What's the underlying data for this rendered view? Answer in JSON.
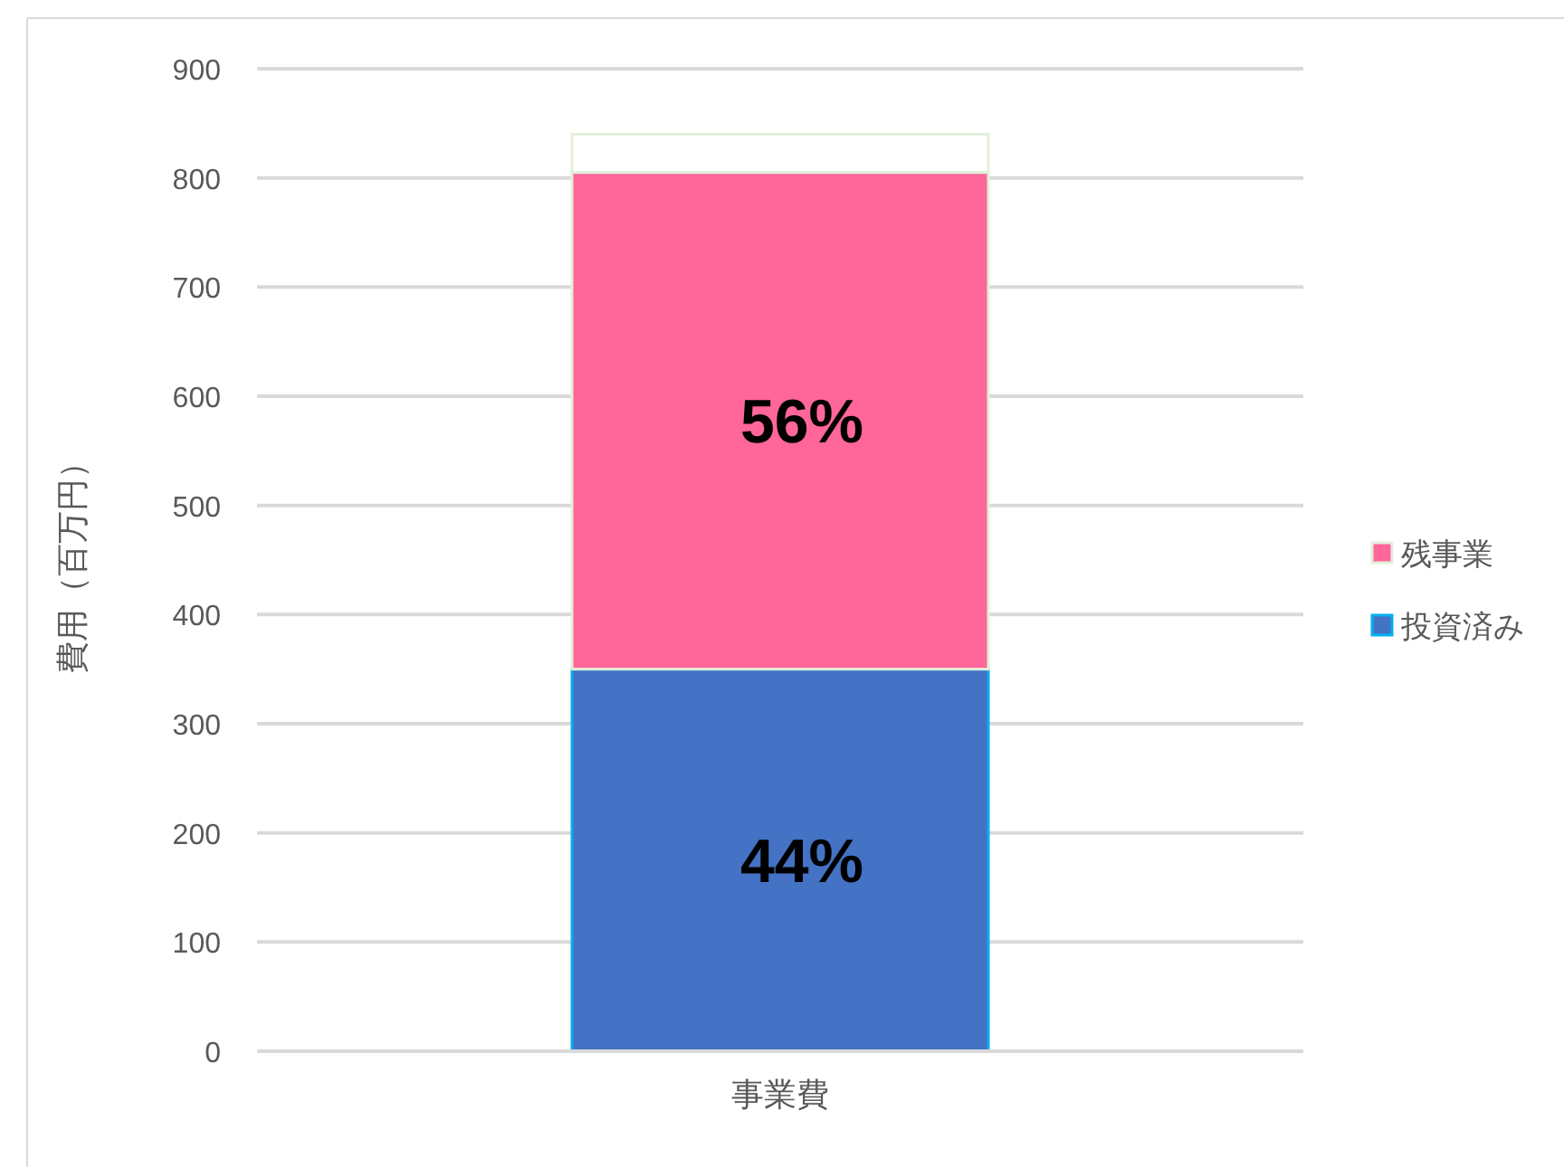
{
  "chart_data": {
    "type": "bar",
    "stacked": true,
    "categories": [
      "事業費"
    ],
    "ylabel": "費用（百万円）",
    "ylim": [
      0,
      900
    ],
    "yticks": [
      0,
      100,
      200,
      300,
      400,
      500,
      600,
      700,
      800,
      900
    ],
    "grid": "y",
    "legend": "right",
    "annotations": [
      "44%",
      "56%"
    ],
    "series": [
      {
        "name": "投資済み",
        "color": "#4472c4",
        "values": [
          350
        ]
      },
      {
        "name": "残事業",
        "color": "#ff6699",
        "values": [
          455
        ]
      },
      {
        "color": "#ffffff",
        "values": [
          35
        ]
      }
    ]
  }
}
